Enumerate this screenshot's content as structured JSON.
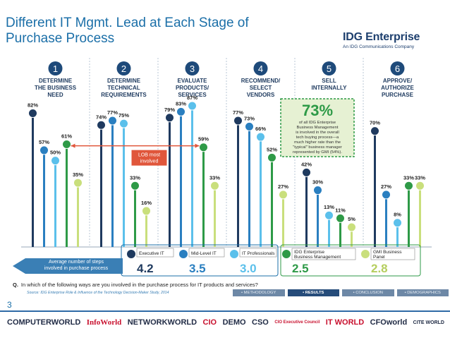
{
  "page": {
    "title_line1": "Different IT Mgmt. Lead at Each Stage of",
    "title_line2": "Purchase Process",
    "logo_name": "IDG Enterprise",
    "logo_sub": "An IDG Communications Company",
    "page_number": "3"
  },
  "chart_data": {
    "type": "bar",
    "title": "Different IT Mgmt. Lead at Each Stage of Purchase Process",
    "categories": [
      {
        "number": "1",
        "lines": [
          "DETERMINE",
          "THE BUSINESS",
          "NEED"
        ]
      },
      {
        "number": "2",
        "lines": [
          "DETERMINE",
          "TECHNICAL",
          "REQUIREMENTS"
        ]
      },
      {
        "number": "3",
        "lines": [
          "EVALUATE",
          "PRODUCTS/",
          "SERVICES"
        ]
      },
      {
        "number": "4",
        "lines": [
          "RECOMMEND/",
          "SELECT",
          "VENDORS"
        ]
      },
      {
        "number": "5",
        "lines": [
          "SELL",
          "INTERNALLY"
        ]
      },
      {
        "number": "6",
        "lines": [
          "APPROVE/",
          "AUTHORIZE",
          "PURCHASE"
        ]
      }
    ],
    "ylim": [
      0,
      100
    ],
    "series": [
      {
        "name": "Executive IT",
        "color": "#1f3a5f",
        "values": [
          82,
          74,
          79,
          77,
          42,
          70
        ],
        "labels": [
          "82%",
          "74%",
          "79%",
          "77%",
          "42%",
          "70%"
        ]
      },
      {
        "name": "Mid-Level IT",
        "color": "#2a7fc0",
        "values": [
          57,
          77,
          83,
          73,
          30,
          27
        ],
        "labels": [
          "57%",
          "77%",
          "83%",
          "73%",
          "30%",
          "27%"
        ]
      },
      {
        "name": "IT Professionals",
        "color": "#5bc0eb",
        "values": [
          50,
          75,
          87,
          66,
          13,
          8
        ],
        "labels": [
          "50%",
          "75%",
          "87%",
          "66%",
          "13%",
          "8%"
        ]
      },
      {
        "name": "IDG Enterprise Business Management",
        "color": "#2e9a47",
        "values": [
          61,
          33,
          59,
          52,
          11,
          33
        ],
        "labels": [
          "61%",
          "33%",
          "59%",
          "52%",
          "11%",
          "33%"
        ]
      },
      {
        "name": "GMI Business Panel",
        "color": "#c9df7c",
        "values": [
          35,
          16,
          33,
          27,
          5,
          33
        ],
        "labels": [
          "35%",
          "16%",
          "33%",
          "27%",
          "5%",
          "33%"
        ]
      }
    ],
    "annotations": {
      "lob_line1": "LOB most",
      "lob_line2": "involved",
      "callout_big": "73%",
      "callout_lines": [
        "of all IDG Enterprise",
        "Business Management",
        "is involved in the overall",
        "tech buying process—a",
        "much higher rate than the",
        "\"typical\" business manager",
        "represented by GMI (54%)."
      ]
    },
    "avg_steps": {
      "banner_line1": "Average number of steps",
      "banner_line2": "involved in purchase process",
      "values": [
        "4.2",
        "3.5",
        "3.0",
        "2.5",
        "2.8"
      ],
      "legend_labels": [
        [
          "Executive IT"
        ],
        [
          "Mid-Level IT"
        ],
        [
          "IT Professionals"
        ],
        [
          "IDG Enterprise",
          "Business Management"
        ],
        [
          "GMI Business",
          "Panel"
        ]
      ]
    }
  },
  "footer": {
    "q_label": "Q.",
    "question": "In which of the following ways are you involved in the purchase process for IT products and services?",
    "source": "Source: IDG Enterprise Role & Influence of the Technology Decision-Maker Study, 2014",
    "nav": [
      "• METHODOLOGY",
      "• RESULTS",
      "• CONCLUSION",
      "• DEMOGRAPHICS"
    ]
  },
  "brands": [
    "COMPUTERWORLD",
    "InfoWorld",
    "NETWORKWORLD",
    "CIO",
    "DEMO",
    "CSO",
    "CIO Executive Council",
    "IT WORLD",
    "CFOworld",
    "CITE WORLD"
  ]
}
